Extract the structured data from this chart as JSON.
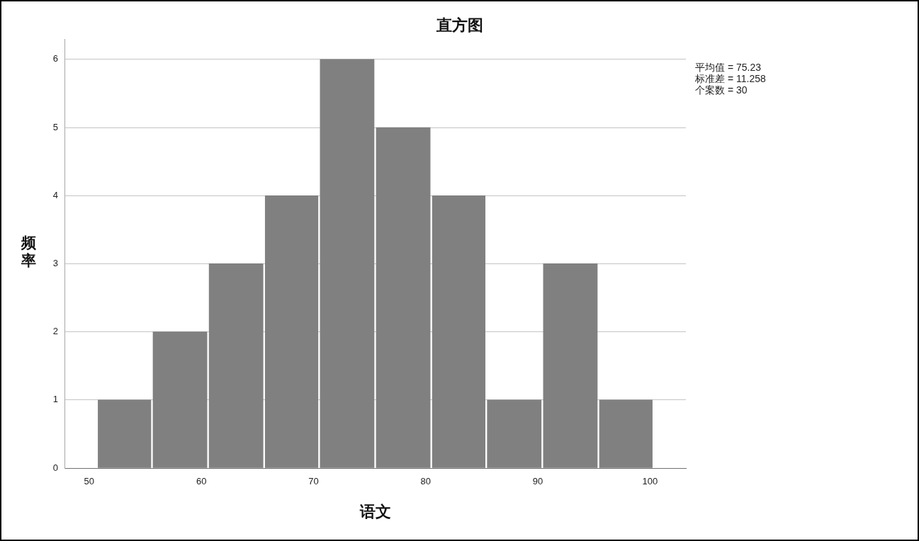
{
  "chart_data": {
    "type": "histogram",
    "title": "直方图",
    "xlabel": "语文",
    "ylabel": "频率",
    "annotations": [
      "平均值 = 75.23",
      "标准差 = 11.258",
      "个案数 = 30"
    ],
    "bins": [
      50.7,
      55.6,
      60.6,
      65.6,
      70.5,
      75.5,
      80.5,
      85.4,
      90.4,
      95.4,
      100.3
    ],
    "values": [
      1,
      2,
      3,
      4,
      6,
      5,
      4,
      1,
      3,
      1
    ],
    "color": "#808080",
    "xlim": [
      47.8,
      103.2
    ],
    "ylim": [
      0,
      6.3
    ],
    "xticks": [
      50,
      60,
      70,
      80,
      90,
      100
    ],
    "yticks": [
      0,
      1,
      2,
      3,
      4,
      5,
      6
    ],
    "grid": "y"
  }
}
